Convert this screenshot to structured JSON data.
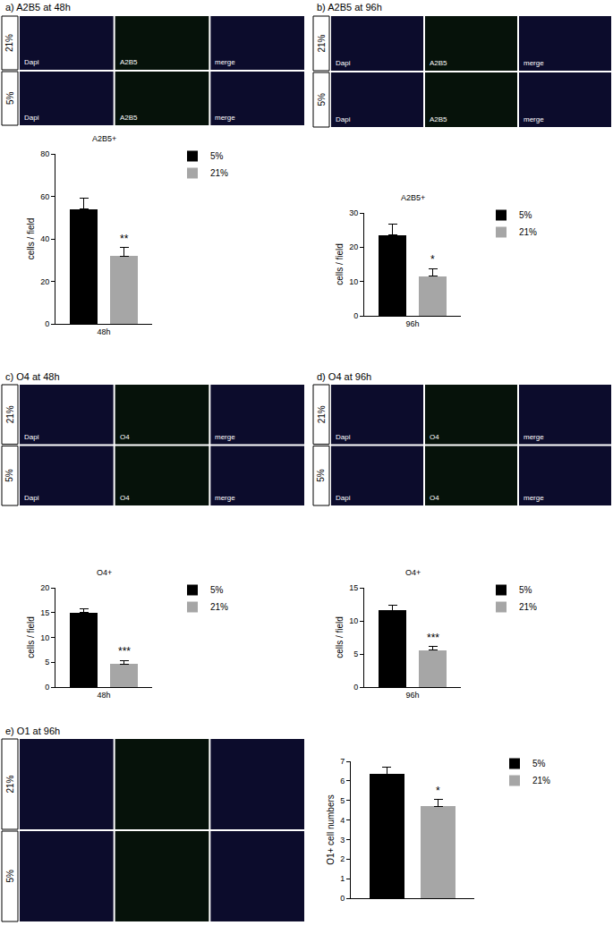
{
  "image_panels": [
    {
      "title": "a) A2B5 at 48h",
      "rows": [
        "21%",
        "5%"
      ],
      "channels": [
        "Dapi",
        "A2B5",
        "merge"
      ]
    },
    {
      "title": "b) A2B5 at 96h",
      "rows": [
        "21%",
        "5%"
      ],
      "channels": [
        "Dapi",
        "A2B5",
        "merge"
      ]
    },
    {
      "title": "c) O4 at 48h",
      "rows": [
        "21%",
        "5%"
      ],
      "channels": [
        "Dapi",
        "O4",
        "merge"
      ]
    },
    {
      "title": "d) O4 at 96h",
      "rows": [
        "21%",
        "5%"
      ],
      "channels": [
        "Dapi",
        "O4",
        "merge"
      ]
    },
    {
      "title": "e) O1 at 96h",
      "rows": [
        "21%",
        "5%"
      ]
    }
  ],
  "chart_data": [
    {
      "type": "bar",
      "title": "A2B5+",
      "y_label": "cells / field",
      "categories": [
        "48h"
      ],
      "series": [
        {
          "name": "5%",
          "color": "#000000",
          "values": [
            54
          ],
          "errors": [
            5
          ]
        },
        {
          "name": "21%",
          "color": "#a6a6a6",
          "values": [
            32
          ],
          "errors": [
            4
          ]
        }
      ],
      "ylim": [
        0,
        80
      ],
      "yticks": [
        0,
        20,
        40,
        60,
        80
      ],
      "annotation": "**",
      "legend": "right",
      "grid": false
    },
    {
      "type": "bar",
      "title": "A2B5+",
      "y_label": "cells / field",
      "categories": [
        "96h"
      ],
      "series": [
        {
          "name": "5%",
          "color": "#000000",
          "values": [
            23.5
          ],
          "errors": [
            3.2
          ]
        },
        {
          "name": "21%",
          "color": "#a6a6a6",
          "values": [
            11.5
          ],
          "errors": [
            2.3
          ]
        }
      ],
      "ylim": [
        0,
        30
      ],
      "yticks": [
        0,
        10,
        20,
        30
      ],
      "annotation": "*",
      "legend": "right",
      "grid": false
    },
    {
      "type": "bar",
      "title": "O4+",
      "y_label": "cells / field",
      "categories": [
        "48h"
      ],
      "series": [
        {
          "name": "5%",
          "color": "#000000",
          "values": [
            15
          ],
          "errors": [
            0.8
          ]
        },
        {
          "name": "21%",
          "color": "#a6a6a6",
          "values": [
            4.6
          ],
          "errors": [
            0.8
          ]
        }
      ],
      "ylim": [
        0,
        20
      ],
      "yticks": [
        0,
        5,
        10,
        15,
        20
      ],
      "annotation": "***",
      "legend": "right",
      "grid": false
    },
    {
      "type": "bar",
      "title": "O4+",
      "y_label": "cells / field",
      "categories": [
        "96h"
      ],
      "series": [
        {
          "name": "5%",
          "color": "#000000",
          "values": [
            11.6
          ],
          "errors": [
            0.7
          ]
        },
        {
          "name": "21%",
          "color": "#a6a6a6",
          "values": [
            5.6
          ],
          "errors": [
            0.5
          ]
        }
      ],
      "ylim": [
        0,
        15
      ],
      "yticks": [
        0,
        5,
        10,
        15
      ],
      "annotation": "***",
      "legend": "right",
      "grid": false
    },
    {
      "type": "bar",
      "y_label": "O1+ cell numbers",
      "categories": [
        null
      ],
      "series": [
        {
          "name": "5%",
          "color": "#000000",
          "values": [
            6.35
          ],
          "errors": [
            0.35
          ]
        },
        {
          "name": "21%",
          "color": "#a6a6a6",
          "values": [
            4.7
          ],
          "errors": [
            0.35
          ]
        }
      ],
      "ylim": [
        0,
        7
      ],
      "yticks": [
        0,
        1,
        2,
        3,
        4,
        5,
        6,
        7
      ],
      "annotation": "*",
      "legend": "right",
      "grid": false
    }
  ]
}
